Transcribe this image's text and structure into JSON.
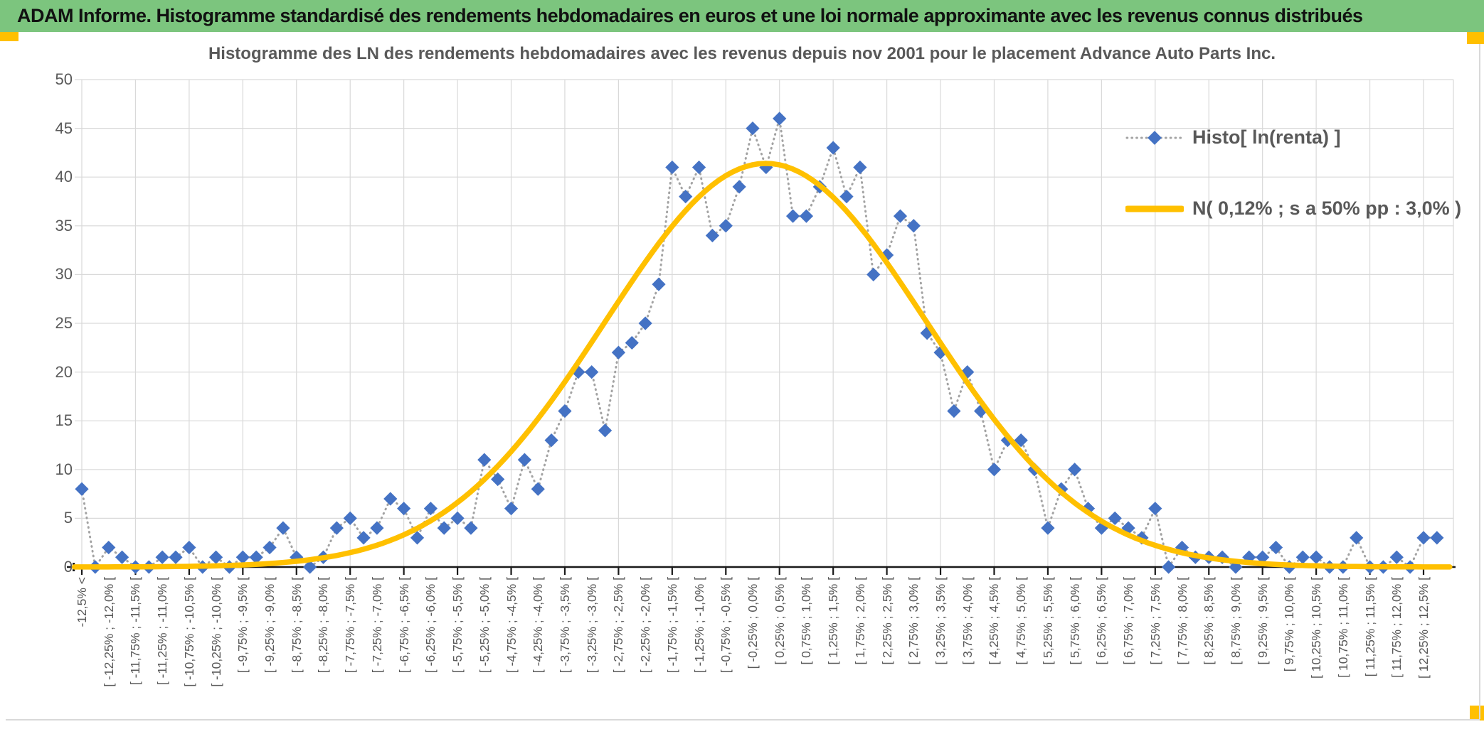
{
  "header": {
    "title": "ADAM Informe. Histogramme standardisé des rendements hebdomadaires en euros et une loi normale approximante avec les revenus connus distribués"
  },
  "chart": {
    "title": "Histogramme des LN des rendements hebdomadaires avec les revenus depuis nov 2001 pour le placement Advance Auto Parts Inc."
  },
  "legend": {
    "entries": [
      {
        "label": "Histo[ ln(renta) ]",
        "marker": "blue-diamond-dotted-line"
      },
      {
        "label": "N( 0,12% ; s a 50% pp : 3,0% )",
        "marker": "yellow-solid-line"
      }
    ]
  },
  "chart_data": {
    "type": "line",
    "title": "Histogramme des LN des rendements hebdomadaires avec les revenus depuis nov 2001 pour le placement Advance Auto Parts Inc.",
    "legend_position": "top-right",
    "grid": true,
    "ylim": [
      0,
      50
    ],
    "y_ticks": [
      0,
      5,
      10,
      15,
      20,
      25,
      30,
      35,
      40,
      45,
      50
    ],
    "bin_count": 102,
    "bin_width_pct": 0.25,
    "x_label_interval": 2,
    "x_labels": [
      "-12,5% <",
      "[ -12,25% ; -12,0% [",
      "[ -11,75% ; -11,5% [",
      "[ -11,25% ; -11,0% [",
      "[ -10,75% ; -10,5% [",
      "[ -10,25% ; -10,0% [",
      "[ -9,75% ; -9,5% [",
      "[ -9,25% ; -9,0% [",
      "[ -8,75% ; -8,5% [",
      "[ -8,25% ; -8,0% [",
      "[ -7,75% ; -7,5% [",
      "[ -7,25% ; -7,0% [",
      "[ -6,75% ; -6,5% [",
      "[ -6,25% ; -6,0% [",
      "[ -5,75% ; -5,5% [",
      "[ -5,25% ; -5,0% [",
      "[ -4,75% ; -4,5% [",
      "[ -4,25% ; -4,0% [",
      "[ -3,75% ; -3,5% [",
      "[ -3,25% ; -3,0% [",
      "[ -2,75% ; -2,5% [",
      "[ -2,25% ; -2,0% [",
      "[ -1,75% ; -1,5% [",
      "[ -1,25% ; -1,0% [",
      "[ -0,75% ; -0,5% [",
      "[ -0,25% ; 0,0% [",
      "[ 0,25% ; 0,5% [",
      "[ 0,75% ; 1,0% [",
      "[ 1,25% ; 1,5% [",
      "[ 1,75% ; 2,0% [",
      "[ 2,25% ; 2,5% [",
      "[ 2,75% ; 3,0% [",
      "[ 3,25% ; 3,5% [",
      "[ 3,75% ; 4,0% [",
      "[ 4,25% ; 4,5% [",
      "[ 4,75% ; 5,0% [",
      "[ 5,25% ; 5,5% [",
      "[ 5,75% ; 6,0% [",
      "[ 6,25% ; 6,5% [",
      "[ 6,75% ; 7,0% [",
      "[ 7,25% ; 7,5% [",
      "[ 7,75% ; 8,0% [",
      "[ 8,25% ; 8,5% [",
      "[ 8,75% ; 9,0% [",
      "[ 9,25% ; 9,5% [",
      "[ 9,75% ; 10,0% [",
      "[ 10,25% ; 10,5% [",
      "[ 10,75% ; 11,0% [",
      "[ 11,25% ; 11,5% [",
      "[ 11,75% ; 12,0% [",
      "[ 12,25% ; 12,5% ["
    ],
    "colors": {
      "grid": "#D9D9D9",
      "axis": "#1A1A1A",
      "text": "#595959",
      "header_bg": "#7CC57E",
      "accent": "#FFC000"
    },
    "series": [
      {
        "name": "Histo[ ln(renta) ]",
        "type": "scatter",
        "marker": "diamond",
        "color": "#4472C4",
        "line_style": "dotted",
        "line_color": "#A3A3A3",
        "values": [
          8,
          0,
          2,
          1,
          0,
          0,
          1,
          1,
          2,
          0,
          1,
          0,
          1,
          1,
          2,
          4,
          1,
          0,
          1,
          4,
          5,
          3,
          4,
          7,
          6,
          3,
          6,
          4,
          5,
          4,
          11,
          9,
          6,
          11,
          8,
          13,
          16,
          20,
          20,
          14,
          22,
          23,
          25,
          29,
          41,
          38,
          41,
          34,
          35,
          39,
          45,
          41,
          46,
          36,
          36,
          39,
          43,
          38,
          41,
          30,
          32,
          36,
          35,
          24,
          22,
          16,
          20,
          16,
          10,
          13,
          13,
          10,
          4,
          8,
          10,
          6,
          4,
          5,
          4,
          3,
          6,
          0,
          2,
          1,
          1,
          1,
          0,
          1,
          1,
          2,
          0,
          1,
          1,
          0,
          0,
          3,
          0,
          0,
          1,
          0,
          3,
          3
        ]
      },
      {
        "name": "N( 0,12% ; s a 50% pp : 3,0% )",
        "type": "normal_curve",
        "color": "#FFC000",
        "mean_pct": 0.12,
        "sd_pct": 3.0,
        "peak": 41.4
      }
    ]
  }
}
